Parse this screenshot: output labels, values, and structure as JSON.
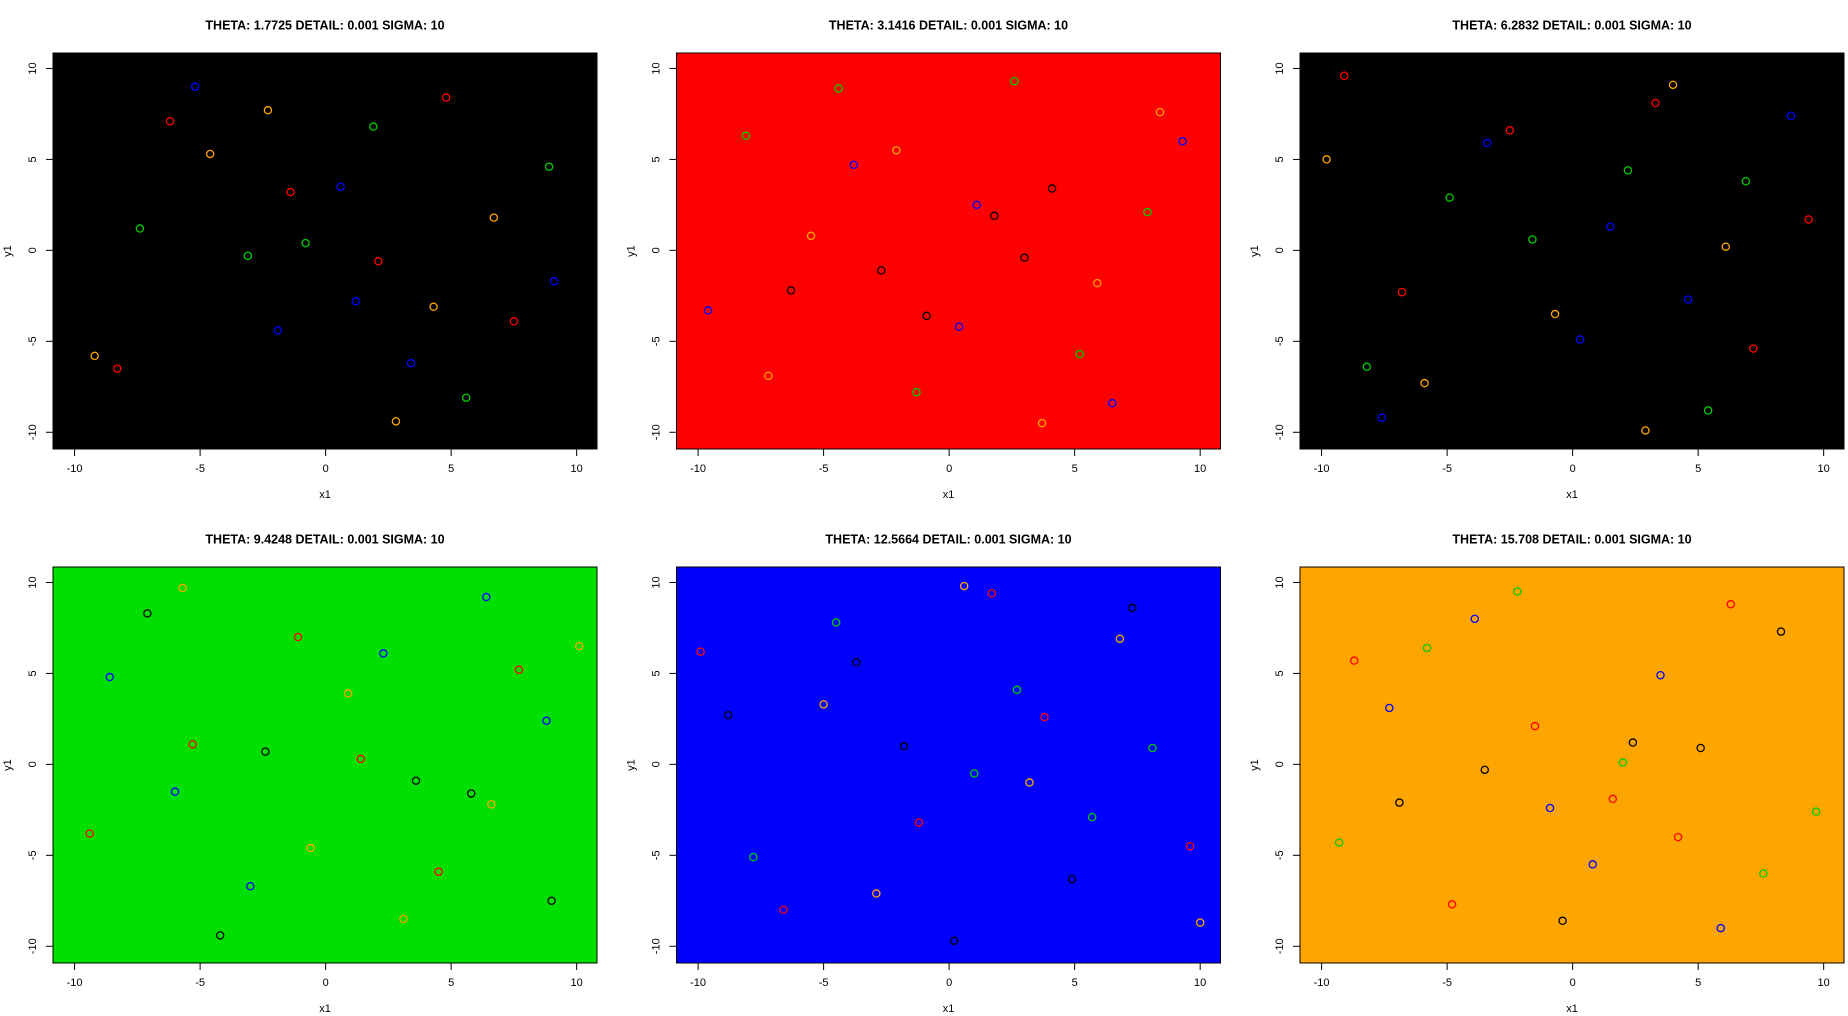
{
  "chart_data": [
    {
      "type": "scatter",
      "title": "THETA: 1.7725 DETAIL: 0.001 SIGMA: 10",
      "xlabel": "x1",
      "ylabel": "y1",
      "xlim": [
        -10.86,
        10.81
      ],
      "ylim": [
        -10.92,
        10.85
      ],
      "xticks": [
        -10,
        -5,
        0,
        5,
        10
      ],
      "yticks": [
        -10,
        -5,
        0,
        5,
        10
      ],
      "background": "#000000",
      "series": [
        {
          "color": "#ff0000",
          "x": [
            -6.2,
            2.1,
            7.5,
            -1.4,
            4.8,
            -8.3
          ],
          "y": [
            7.1,
            -0.6,
            -3.9,
            3.2,
            8.4,
            -6.5
          ]
        },
        {
          "color": "#00cd00",
          "x": [
            -7.4,
            -3.1,
            8.9,
            5.6,
            -0.8,
            1.9
          ],
          "y": [
            1.2,
            -0.3,
            4.6,
            -8.1,
            0.4,
            6.8
          ]
        },
        {
          "color": "#0000ff",
          "x": [
            0.6,
            -1.9,
            3.4,
            -5.2,
            9.1,
            1.2
          ],
          "y": [
            3.5,
            -4.4,
            -6.2,
            9.0,
            -1.7,
            -2.8
          ]
        },
        {
          "color": "#ffa500",
          "x": [
            4.3,
            -9.2,
            6.7,
            -4.6,
            2.8,
            -2.3
          ],
          "y": [
            -3.1,
            -5.8,
            1.8,
            5.3,
            -9.4,
            7.7
          ]
        }
      ]
    },
    {
      "type": "scatter",
      "title": "THETA: 3.1416 DETAIL: 0.001 SIGMA: 10",
      "xlabel": "x1",
      "ylabel": "y1",
      "xlim": [
        -10.86,
        10.81
      ],
      "ylim": [
        -10.92,
        10.85
      ],
      "xticks": [
        -10,
        -5,
        0,
        5,
        10
      ],
      "yticks": [
        -10,
        -5,
        0,
        5,
        10
      ],
      "background": "#ff0000",
      "series": [
        {
          "color": "#000000",
          "x": [
            1.8,
            -2.7,
            4.1,
            -6.3,
            3.0,
            -0.9
          ],
          "y": [
            1.9,
            -1.1,
            3.4,
            -2.2,
            -0.4,
            -3.6
          ]
        },
        {
          "color": "#00cd00",
          "x": [
            -8.1,
            5.2,
            -1.3,
            7.9,
            -4.4,
            2.6
          ],
          "y": [
            6.3,
            -5.7,
            -7.8,
            2.1,
            8.9,
            9.3
          ]
        },
        {
          "color": "#0000ff",
          "x": [
            0.4,
            -3.8,
            6.5,
            9.3,
            -9.6,
            1.1
          ],
          "y": [
            -4.2,
            4.7,
            -8.4,
            6.0,
            -3.3,
            2.5
          ]
        },
        {
          "color": "#ffa500",
          "x": [
            -5.5,
            8.4,
            -7.2,
            3.7,
            -2.1,
            5.9
          ],
          "y": [
            0.8,
            7.6,
            -6.9,
            -9.5,
            5.5,
            -1.8
          ]
        }
      ]
    },
    {
      "type": "scatter",
      "title": "THETA: 6.2832 DETAIL: 0.001 SIGMA: 10",
      "xlabel": "x1",
      "ylabel": "y1",
      "xlim": [
        -10.86,
        10.81
      ],
      "ylim": [
        -10.92,
        10.85
      ],
      "xticks": [
        -10,
        -5,
        0,
        5,
        10
      ],
      "yticks": [
        -10,
        -5,
        0,
        5,
        10
      ],
      "background": "#000000",
      "series": [
        {
          "color": "#ff0000",
          "x": [
            -6.8,
            3.3,
            7.2,
            -2.5,
            9.4,
            -9.1
          ],
          "y": [
            -2.3,
            8.1,
            -5.4,
            6.6,
            1.7,
            9.6
          ]
        },
        {
          "color": "#00cd00",
          "x": [
            -4.9,
            -1.6,
            5.4,
            -8.2,
            2.2,
            6.9
          ],
          "y": [
            2.9,
            0.6,
            -8.8,
            -6.4,
            4.4,
            3.8
          ]
        },
        {
          "color": "#0000ff",
          "x": [
            1.5,
            4.6,
            -3.4,
            8.7,
            -7.6,
            0.3
          ],
          "y": [
            1.3,
            -2.7,
            5.9,
            7.4,
            -9.2,
            -4.9
          ]
        },
        {
          "color": "#ffa500",
          "x": [
            -0.7,
            -5.9,
            2.9,
            6.1,
            -9.8,
            4.0
          ],
          "y": [
            -3.5,
            -7.3,
            -9.9,
            0.2,
            5.0,
            9.1
          ]
        }
      ]
    },
    {
      "type": "scatter",
      "title": "THETA: 9.4248 DETAIL: 0.001 SIGMA: 10",
      "xlabel": "x1",
      "ylabel": "y1",
      "xlim": [
        -10.86,
        10.81
      ],
      "ylim": [
        -10.92,
        10.85
      ],
      "xticks": [
        -10,
        -5,
        0,
        5,
        10
      ],
      "yticks": [
        -10,
        -5,
        0,
        5,
        10
      ],
      "background": "#00e000",
      "series": [
        {
          "color": "#000000",
          "x": [
            -2.4,
            3.6,
            5.8,
            -7.1,
            9.0,
            -4.2
          ],
          "y": [
            0.7,
            -0.9,
            -1.6,
            8.3,
            -7.5,
            -9.4
          ]
        },
        {
          "color": "#ff0000",
          "x": [
            -5.3,
            1.4,
            7.7,
            -9.4,
            4.5,
            -1.1
          ],
          "y": [
            1.1,
            0.3,
            5.2,
            -3.8,
            -5.9,
            7.0
          ]
        },
        {
          "color": "#0000ff",
          "x": [
            -8.6,
            6.4,
            -3.0,
            2.3,
            8.8,
            -6.0
          ],
          "y": [
            4.8,
            9.2,
            -6.7,
            6.1,
            2.4,
            -1.5
          ]
        },
        {
          "color": "#ffa500",
          "x": [
            0.9,
            -0.6,
            3.1,
            -5.7,
            6.6,
            10.1
          ],
          "y": [
            3.9,
            -4.6,
            -8.5,
            9.7,
            -2.2,
            6.5
          ]
        }
      ]
    },
    {
      "type": "scatter",
      "title": "THETA: 12.5664 DETAIL: 0.001 SIGMA: 10",
      "xlabel": "x1",
      "ylabel": "y1",
      "xlim": [
        -10.86,
        10.81
      ],
      "ylim": [
        -10.92,
        10.85
      ],
      "xticks": [
        -10,
        -5,
        0,
        5,
        10
      ],
      "yticks": [
        -10,
        -5,
        0,
        5,
        10
      ],
      "background": "#0000ff",
      "series": [
        {
          "color": "#000000",
          "x": [
            -3.7,
            4.9,
            -8.8,
            7.3,
            0.2,
            -1.8
          ],
          "y": [
            5.6,
            -6.3,
            2.7,
            8.6,
            -9.7,
            1.0
          ]
        },
        {
          "color": "#ff0000",
          "x": [
            -1.2,
            3.8,
            -6.6,
            1.7,
            9.6,
            -9.9
          ],
          "y": [
            -3.2,
            2.6,
            -8.0,
            9.4,
            -4.5,
            6.2
          ]
        },
        {
          "color": "#00cd00",
          "x": [
            1.0,
            -4.5,
            5.7,
            -7.8,
            2.7,
            8.1
          ],
          "y": [
            -0.5,
            7.8,
            -2.9,
            -5.1,
            4.1,
            0.9
          ]
        },
        {
          "color": "#ffa500",
          "x": [
            3.2,
            -2.9,
            6.8,
            -5.0,
            10.0,
            0.6
          ],
          "y": [
            -1.0,
            -7.1,
            6.9,
            3.3,
            -8.7,
            9.8
          ]
        }
      ]
    },
    {
      "type": "scatter",
      "title": "THETA: 15.708 DETAIL: 0.001 SIGMA: 10",
      "xlabel": "x1",
      "ylabel": "y1",
      "xlim": [
        -10.86,
        10.81
      ],
      "ylim": [
        -10.92,
        10.85
      ],
      "xticks": [
        -10,
        -5,
        0,
        5,
        10
      ],
      "yticks": [
        -10,
        -5,
        0,
        5,
        10
      ],
      "background": "#ffa500",
      "series": [
        {
          "color": "#000000",
          "x": [
            -3.5,
            2.4,
            -6.9,
            5.1,
            8.3,
            -0.4
          ],
          "y": [
            -0.3,
            1.2,
            -2.1,
            0.9,
            7.3,
            -8.6
          ]
        },
        {
          "color": "#ff0000",
          "x": [
            -1.5,
            4.2,
            -8.7,
            6.3,
            -4.8,
            1.6
          ],
          "y": [
            2.1,
            -4.0,
            5.7,
            8.8,
            -7.7,
            -1.9
          ]
        },
        {
          "color": "#00cd00",
          "x": [
            2.0,
            -5.8,
            7.6,
            -2.2,
            9.7,
            -9.3
          ],
          "y": [
            0.1,
            6.4,
            -6.0,
            9.5,
            -2.6,
            -4.3
          ]
        },
        {
          "color": "#0000ff",
          "x": [
            -0.9,
            3.5,
            -7.3,
            5.9,
            -3.9,
            0.8
          ],
          "y": [
            -2.4,
            4.9,
            3.1,
            -9.0,
            8.0,
            -5.5
          ]
        }
      ]
    }
  ]
}
